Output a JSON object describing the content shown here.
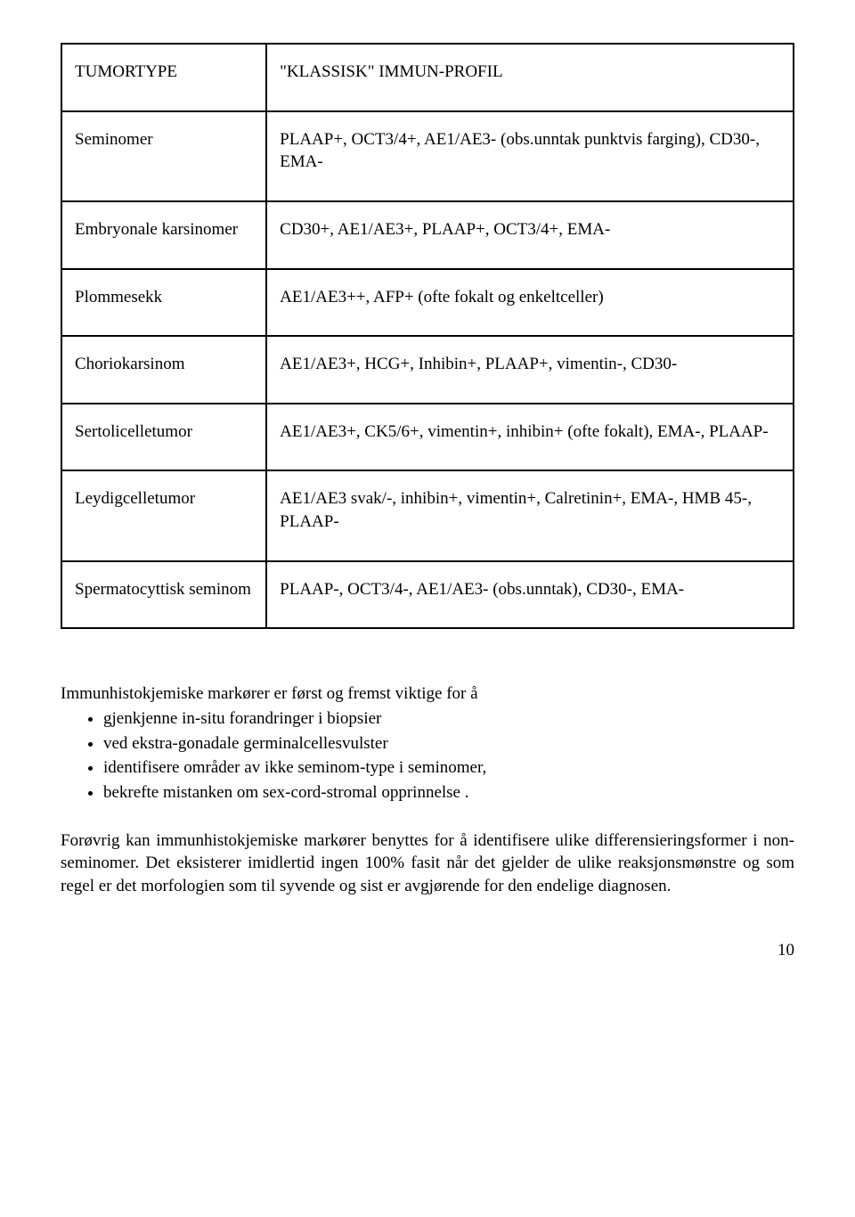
{
  "table": {
    "header": {
      "left": "TUMORTYPE",
      "right": "\"KLASSISK\" IMMUN-PROFIL"
    },
    "rows": [
      {
        "left": "Seminomer",
        "right": "PLAAP+, OCT3/4+, AE1/AE3- (obs.unntak punktvis farging), CD30-, EMA-"
      },
      {
        "left": "Embryonale karsinomer",
        "right": "CD30+, AE1/AE3+, PLAAP+, OCT3/4+, EMA-"
      },
      {
        "left": "Plommesekk",
        "right": "AE1/AE3++, AFP+ (ofte fokalt og enkeltceller)"
      },
      {
        "left": "Choriokarsinom",
        "right": "AE1/AE3+, HCG+, Inhibin+, PLAAP+, vimentin-, CD30-"
      },
      {
        "left": "Sertolicelletumor",
        "right": "AE1/AE3+, CK5/6+, vimentin+, inhibin+ (ofte fokalt), EMA-, PLAAP-"
      },
      {
        "left": "Leydigcelletumor",
        "right": "AE1/AE3 svak/-, inhibin+, vimentin+, Calretinin+, EMA-, HMB 45-, PLAAP-"
      },
      {
        "left": "Spermatocyttisk seminom",
        "right": "PLAAP-, OCT3/4-, AE1/AE3- (obs.unntak), CD30-, EMA-"
      }
    ]
  },
  "intro": "Immunhistokjemiske markører er først og fremst viktige for å",
  "bullets": [
    "gjenkjenne in-situ forandringer i biopsier",
    "ved ekstra-gonadale germinalcellesvulster",
    "identifisere områder av ikke seminom-type i seminomer,",
    "bekrefte mistanken om sex-cord-stromal opprinnelse ."
  ],
  "para": "Forøvrig kan immunhistokjemiske markører benyttes for  å identifisere ulike differensieringsformer i non-seminomer. Det eksisterer imidlertid ingen 100% fasit når det gjelder de ulike reaksjonsmønstre og som regel er det morfologien som til syvende og sist er avgjørende for den endelige diagnosen.",
  "page_number": "10"
}
